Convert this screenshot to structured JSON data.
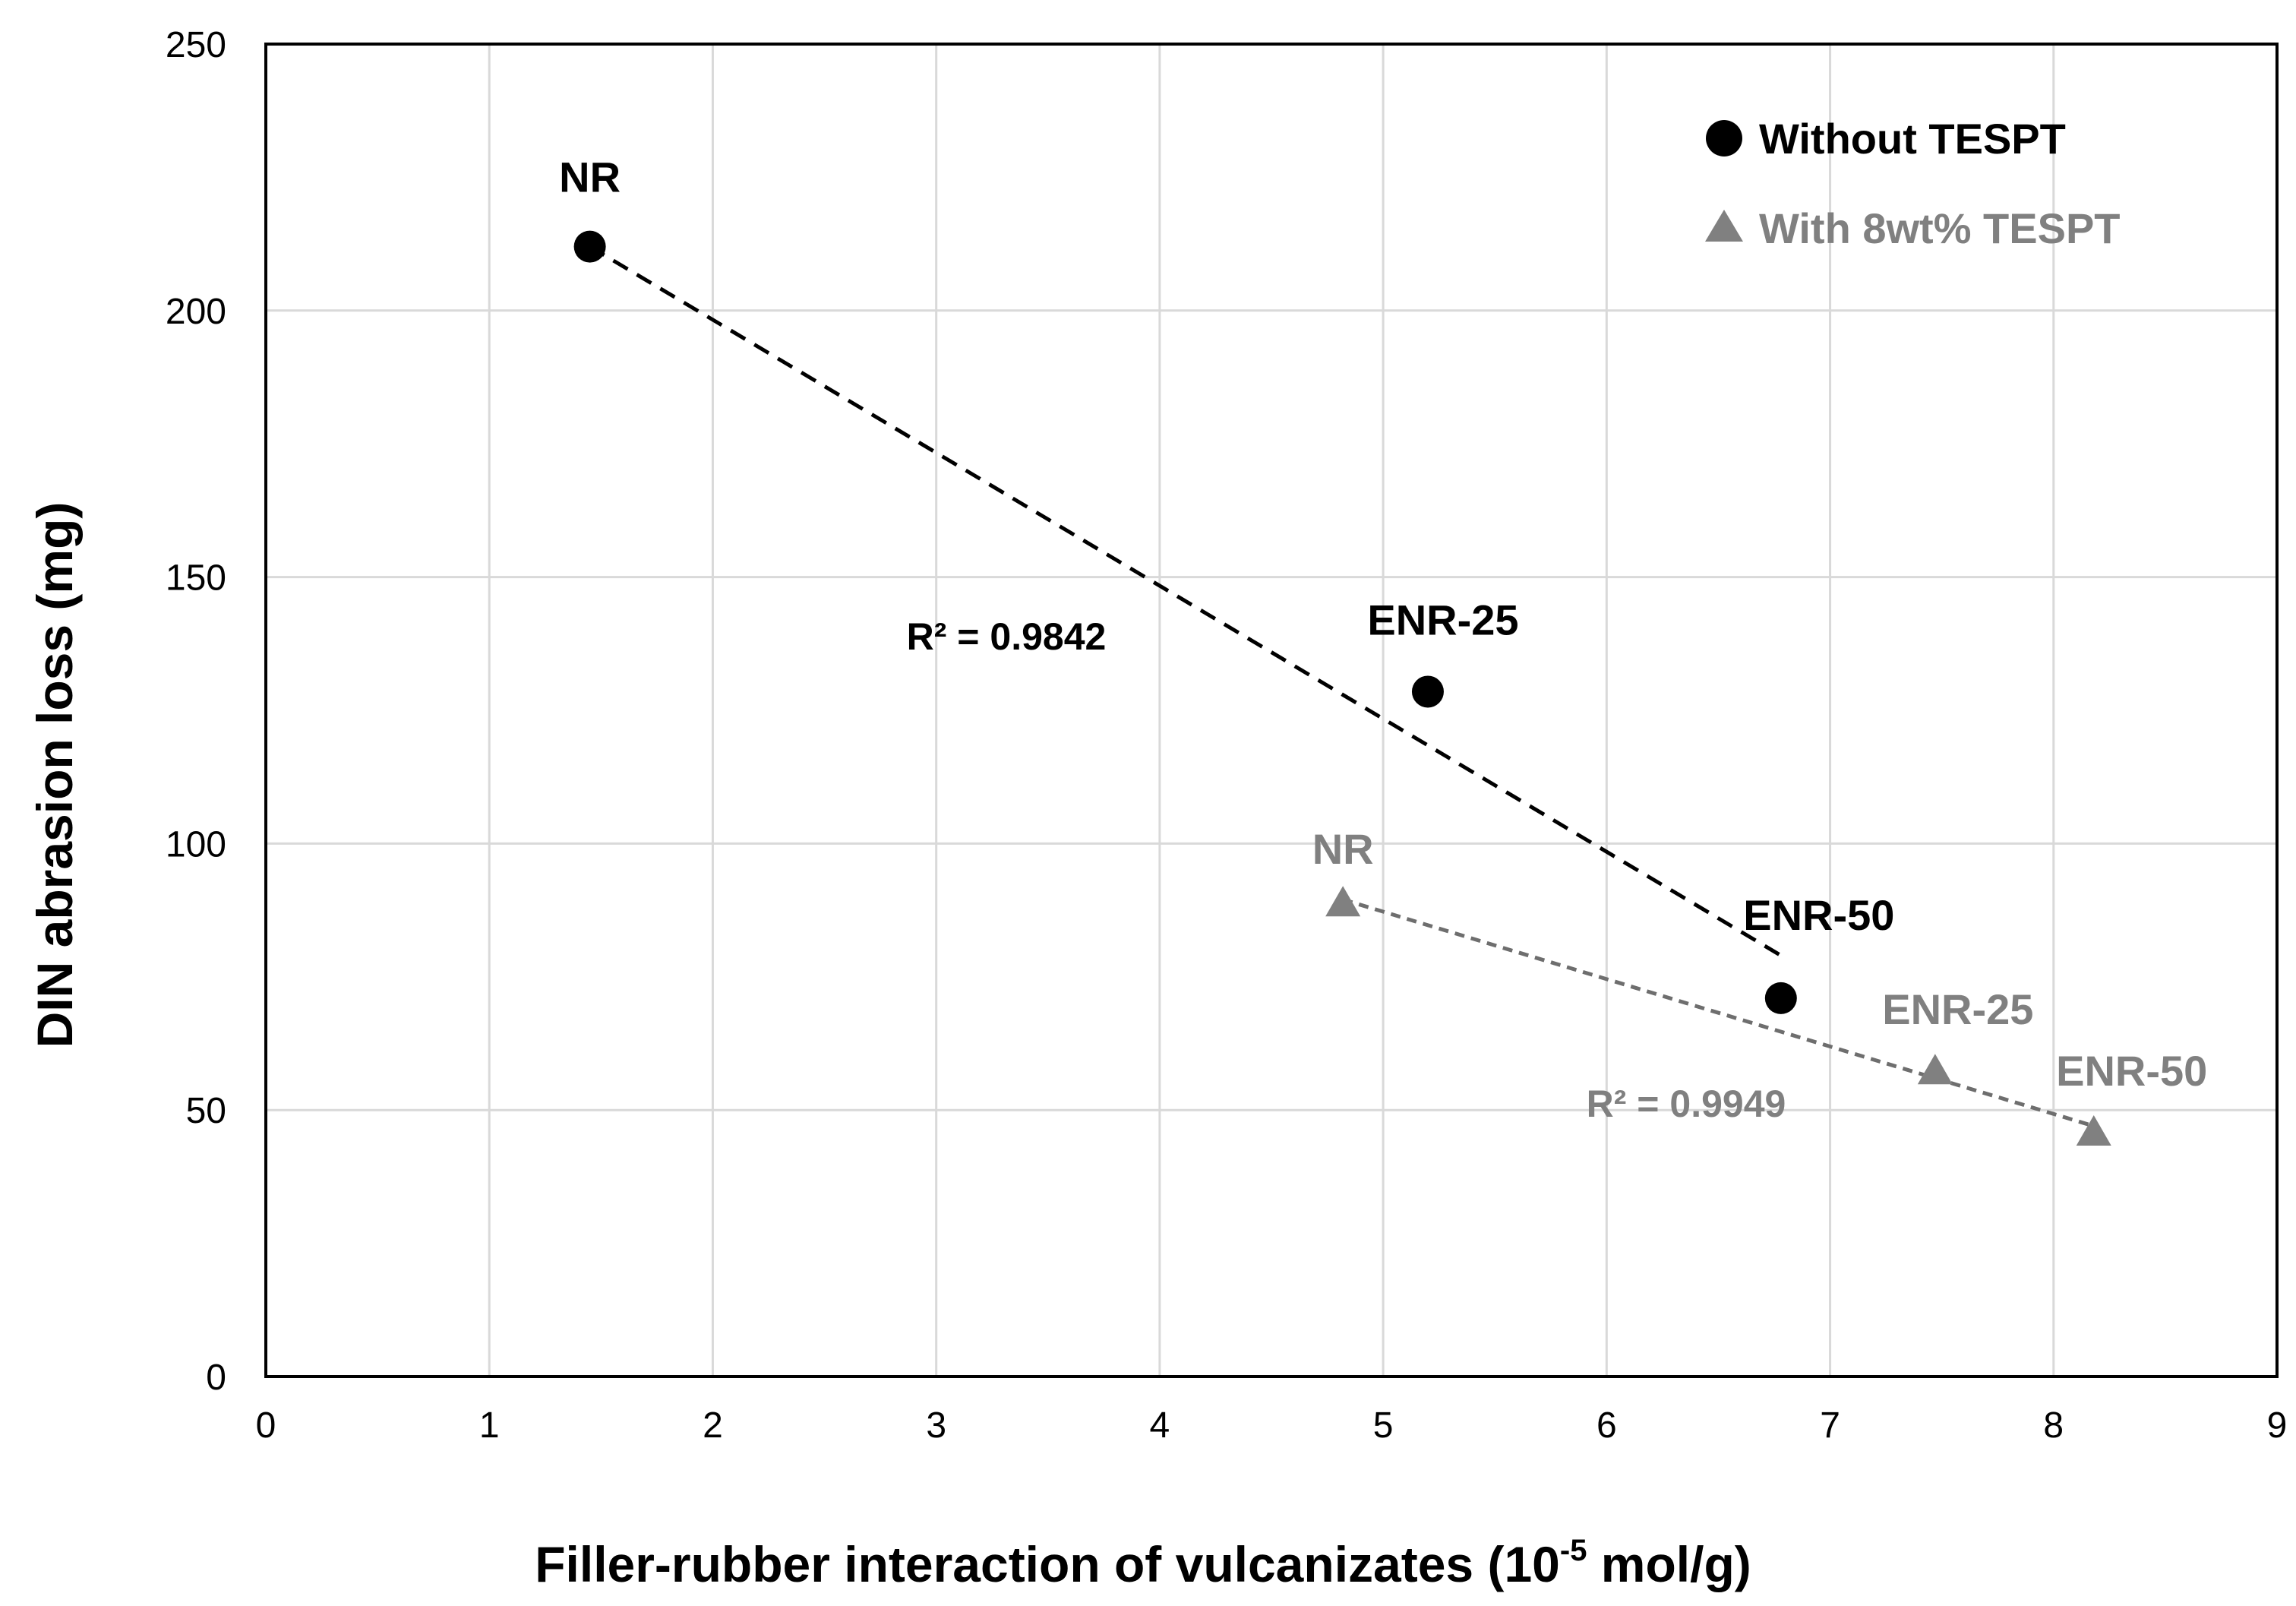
{
  "chart_data": {
    "type": "scatter",
    "xlabel_main": "Filler-rubber interaction of vulcanizates (10",
    "xlabel_sup": "-5",
    "xlabel_tail": " mol/g)",
    "ylabel": "DIN abrasion loss (mg)",
    "xlim": [
      0,
      9
    ],
    "ylim": [
      0,
      250
    ],
    "xticks": [
      "0",
      "1",
      "2",
      "3",
      "4",
      "5",
      "6",
      "7",
      "8",
      "9"
    ],
    "yticks": [
      "0",
      "50",
      "100",
      "150",
      "200",
      "250"
    ],
    "grid": true,
    "legend_position": "top-right",
    "series": [
      {
        "name": "Without TESPT",
        "color": "#000000",
        "marker": "circle",
        "points": [
          {
            "x": 1.45,
            "y": 212,
            "label": "NR"
          },
          {
            "x": 5.2,
            "y": 128.5,
            "label": "ENR-25"
          },
          {
            "x": 6.78,
            "y": 71,
            "label": "ENR-50"
          }
        ],
        "trendline": {
          "x": [
            1.45,
            6.78
          ],
          "y": [
            212,
            79
          ]
        },
        "r2": "R² = 0.9842"
      },
      {
        "name": "With 8wt% TESPT",
        "color": "#808080",
        "marker": "triangle",
        "points": [
          {
            "x": 4.82,
            "y": 88.5,
            "label": "NR"
          },
          {
            "x": 7.47,
            "y": 57,
            "label": "ENR-25"
          },
          {
            "x": 8.18,
            "y": 45.5,
            "label": "ENR-50"
          }
        ],
        "trendline": {
          "x": [
            4.82,
            8.18
          ],
          "y": [
            89.5,
            47
          ]
        },
        "r2": "R² = 0.9949"
      }
    ]
  }
}
